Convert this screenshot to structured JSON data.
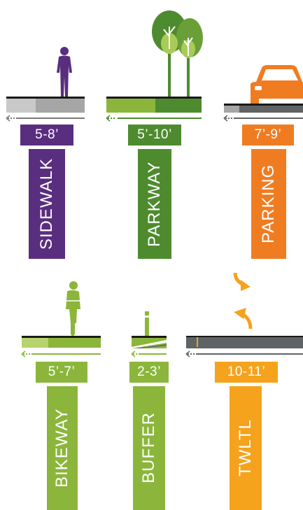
{
  "colors": {
    "purple": "#5a2e7f",
    "green": "#4e8b2e",
    "lightgreen": "#8bb63b",
    "orange": "#f07c22",
    "amber": "#f5a31c",
    "gray": "#5f6366",
    "black": "#1a1a1a"
  },
  "elements": [
    {
      "id": "sidewalk",
      "label": "SIDEWALK",
      "dimension": "5-8’",
      "color": "#5a2e7f",
      "icon": "pedestrian-icon"
    },
    {
      "id": "parkway",
      "label": "PARKWAY",
      "dimension": "5’-10’",
      "color": "#4e8b2e",
      "icon": "tree-icon"
    },
    {
      "id": "parking",
      "label": "PARKING",
      "dimension": "7’-9’",
      "color": "#f07c22",
      "icon": "car-icon"
    },
    {
      "id": "bikeway",
      "label": "BIKEWAY",
      "dimension": "5’-7’",
      "color": "#8bb63b",
      "icon": "cyclist-icon"
    },
    {
      "id": "buffer",
      "label": "BUFFER",
      "dimension": "2-3’",
      "color": "#8bb63b",
      "icon": "bollard-icon"
    },
    {
      "id": "twltl",
      "label": "TWLTL",
      "dimension": "10-11’",
      "color": "#f5a31c",
      "icon": "turn-arrows-icon"
    }
  ]
}
